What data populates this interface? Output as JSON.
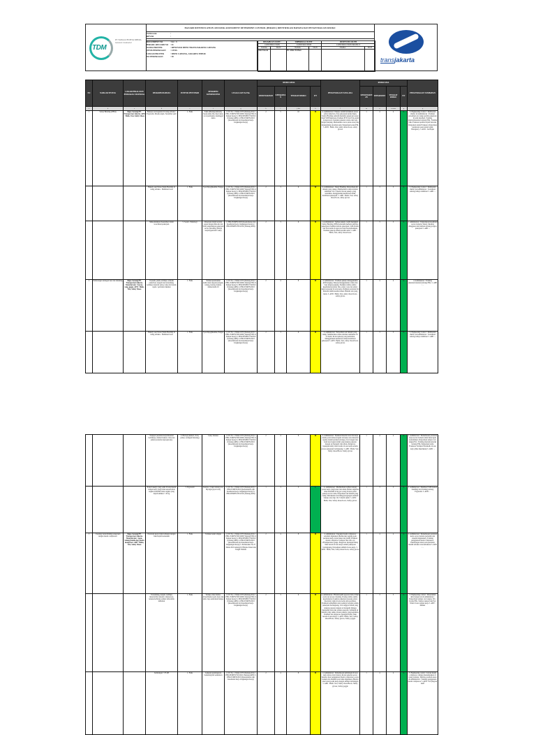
{
  "document": {
    "title": "HAZARD IDENTIFICATION AND RISK ASSESSMENT DETERMINE CONTROL (HIRADC) IDENTIFIKASI BAHAYA DAN PENGENDALIAN RISIKO",
    "company_name": "PT TANGGUH DETA MEDIA",
    "company_tagline": "General Contractor",
    "logo_left_text": "TDM",
    "logo_right_text_a": "trans",
    "logo_right_text_b": "jakarta",
    "info": [
      {
        "label": "TANGGAL",
        "value": ":"
      },
      {
        "label": "REVISI",
        "value": ":"
      },
      {
        "label": "DOCUMENT NO",
        "value": ": 0.2 - 3"
      },
      {
        "label": "HIRADC RECORD NO",
        "value": ": 01"
      },
      {
        "label": "NAMA PROYEK",
        "value": ": RENOVASI DEPO TRANSJAKARTA CAWANG"
      },
      {
        "label": "JENIS PEKERJAAN",
        "value": ": CIVIL"
      },
      {
        "label": "LOKASI PROYEK",
        "value": ": DEPO CAWANG, JAKARTA TIMUR"
      },
      {
        "label": "NO PEKERJAAN",
        "value": ": 30"
      }
    ],
    "approvals": [
      {
        "title": "DISIAPKAN OLEH :",
        "dept": "CONSTRUCTION",
        "name_label": "NAMA",
        "sign_label": "SIGN",
        "name": "Ade Irawan"
      },
      {
        "title": "DIPERIKSA OLEH :",
        "dept": "CONSTRUCTION",
        "name_label": "NAMA",
        "sign_label": "SIGN",
        "name": "M. Athar Farhan"
      },
      {
        "title": "DISETUJUI OLEH",
        "dept": "CONSTRUCTION PROJECT",
        "name_label": "NAMA :",
        "sign_label": "SIGN",
        "name": ""
      }
    ]
  },
  "table": {
    "headers": {
      "no": "NO",
      "aktivitas": "NAMA AKTIVITAS",
      "lokasi": "LOKASI/PERALATAN PERKAKAS/ MATERIAL",
      "bahaya": "DESKRIPSI BAHAYA",
      "potensi": "POTENSI PENYEBAB",
      "konsekuensi": "DESKRIPSI KONSEKUENSI",
      "legal": "LEGAL/LAIN No/Thn",
      "risiko_awal": "RISIKO AWAL",
      "kemungkinan": "KEMUNGKINAN",
      "keparahan": "KEPARAHAN",
      "tingkat": "TINGKAT RISIKO",
      "pt": "P/T",
      "pengendalian": "PENGENDALIAN YANG ADA",
      "risiko_sisa": "RISIKO SISA",
      "kemungkinan2": "KEMUNGKINAN",
      "keparahan2": "KEPARAHAN",
      "tingkat2": "TINGKAT RISIKO",
      "pt2": "P/T",
      "tambahan": "PENGENDALIAN TAMBAHAN"
    },
    "index_row": [
      "a",
      "b",
      "c",
      "d",
      "e",
      "f",
      "g",
      "h",
      "i",
      "j=hxi",
      "k",
      "l",
      "m",
      "n",
      "o=mxn",
      "p",
      "q"
    ],
    "colors": {
      "M": "#ffff00",
      "L": "#00b050",
      "header": "#3c3c3c"
    },
    "rows": [
      {
        "no": "1",
        "aktivitas": "Safety Briefing (TBM)",
        "lokasi": "Depo Cawang PT. Transportasi Jakarta. APD : Helm, Vest, Safety Shoes",
        "bahaya": "Bekerja saat kegiatan di ruang terbuka : Ergonomi, Masuk angin, Tersambar petir",
        "potensi": "1. Fisik",
        "konsekuensi": "Sakit (Meriang/demam), Sesak pilek dll), luka bakar, cacat permanen, meninggal dunia",
        "legal": "1. UU No. 1 Tahun 1970 (Tentang K3) 2. PER.15/MEN/VIII/2008 (Tentang P3K di Tempat Kerja) 3. PER.08/MEN/VII/2010 (Tentang APD) 4. PER.05/MEN/2018 (Keselamatan dan Kesehatan Kerja Lingkungan Kerja)",
        "kemungkinan": "2",
        "keparahan": "5",
        "tingkat": "10",
        "pt": "M",
        "pengendalian": "4. Administrasi : Pekerja sudah melakukan proses safety induction, Stop pekerjaan ketika hujan, Safety Briefing sebelum memulai pekerjaan sesuai hasil SOP Pekerjaan, Pastikan PTW dan JSA sudah di Approved, Gunakan pakaian celana dan baju lengan panjang, Memastikan cuaca panas atau yang mengandung ancaman petir, Pengadaan kotak P3K. 5. APD : Helm, Vest, safety shoes/boots, safety gloves",
        "kemungkinan2": "1",
        "keparahan2": "4",
        "tingkat2": "4",
        "pt2": "L",
        "tambahan": "3. Engineering Control : Pembuatan shelter. & Administrasi : Pastikan persediaan air cukup apabila pekerjaan di terik matahari, Training internal/eksternal tentang P3K, Training fisik, Evakuasi apabila terjadi bencana, Pengadaan tandu Evakuasi, Penyediaan kendaraan operasional untuk Emergency. 5. APD : Jas Hujan"
      },
      {
        "no": "",
        "aktivitas": "",
        "lokasi": "",
        "bahaya": "Bekerja saat Panas (Suhu Ekstrim) di ruang terbuka - Dehidrasi berat",
        "potensi": "1. Fisik",
        "konsekuensi": "Syok hipoglikemik, Fatigue",
        "legal": "1. UU No. 1 Tahun 1970 (Tentang K3) 2. PER.15/MEN/VIII/2008 (Tentang P3K di Tempat Kerja) 3. PER.08/MEN/VII/2010 (Tentang APD) 4. PER.05/MEN/2018 (Keselamatan dan Kesehatan Kerja Lingkungan Kerja)",
        "kemungkinan": "2",
        "keparahan": "3",
        "tingkat": "6",
        "pt": "M",
        "pengendalian": "4. Administrasi : Safety Briefing, Penyediaan Air minum yang cukup, Memberikan waktu istirahat tambahan 10-15 menit, Rotasi pekerja yang kelelahan, menggunakan kendaraan untuk mobilisasi pekerjaan. 5. APD : Helm, Vest, safety shoes/boots, safety gloves",
        "kemungkinan2": "1",
        "keparahan2": "3",
        "tingkat2": "3",
        "pt2": "L",
        "tambahan": "3. Engineering Control : Pembuatan shelter. & Administrasi : Sosialisasi tentang bahaya dehidrasi 5. APD : -"
      },
      {
        "no": "",
        "aktivitas": "",
        "lokasi": "",
        "bahaya": "Miskomunikasi Kesalahan dalam koordinasi pekerjaan",
        "potensi": "5. Sosial - Psikologi",
        "konsekuensi": "Pekerjaan tidak berjalan sesuai dengan Metode dan SOP, pengulangan pekerjaan secara berulang. (Beban kerja/hypertensi/ sakit)",
        "legal": "1. PER.05/MEN/2018 (Keselamatan dan Kesehatan Kerja Lingkungan Kerja) 2. PER.08/MEN/VII/2010 (Tentang APD)",
        "kemungkinan": "2",
        "keparahan": "3",
        "tingkat": "6",
        "pt": "M",
        "pengendalian": "4. Administrasi : Semua pekerja wajib mengikuti Safety Briefing (TBM) sebelum memulai aktifitas pekerjaan, Pastikan metode pekerjaan, SOP, Permit dan JSA sudah di approved dan disosialisasikan, Pastikan pekerja dalam kondisi sehat 5. APD : Helm, Vest, safety shoes/boots",
        "kemungkinan2": "1",
        "keparahan2": "3",
        "tingkat2": "3",
        "pt2": "L",
        "tambahan": "4. Administrasi : Pemeriksaan kesehatan secara berkala (Tensi), Meeting mingguan dan bulanan tentang progres pekerjaan 5. APD : -"
      },
      {
        "no": "2",
        "aktivitas": "Pemasangan tulangan besi dan bekisting",
        "lokasi": "Depo Cawang PT. Transportasi Jakarta. Material alat : Kawat, tang, gegep. APD : Helm, Vest, Safety Shoes",
        "bahaya": "Terjatuh, jatuh, tertimpa, tertusuk paku/besi, terjepit dan tersandung, tertimpa material (alat), Luka dari benda tajam / peralatan tikaman",
        "potensi": "1. Fisik",
        "konsekuensi": "Terluka/pendarahan kulit/cedera kepala (tangan, tulang, benda), memar, infeksi kulit dll",
        "legal": "1. UU No. 1 Tahun 1970 (Tentang K3) 2. PER.15/MEN/VIII/2008 (Tentang P3K di Tempat Kerja) 3. PER.08/MEN/VII/2010 (Tentang APD) 4. PER.05/MEN/2018 (Keselamatan dan Kesehatan Kerja Lingkungan Kerja)",
        "kemungkinan": "2",
        "keparahan": "4",
        "tingkat": "8",
        "pt": "M",
        "pengendalian": "4. Administrasi : Pastikan pekerja menggunakan APD lengkap, Pekerja menggunakan celana dan baju lengan panjang, Pastikan rambu-rambu keselamatan (safety line, safety cone dan safety sign) terpasang di area kerja, Pastikan peralatan dan material dalam kondisi aman. Hindari alat yang rusak. 5. APD : Helm, Vest, safety shoes/boots, safety gloves",
        "kemungkinan2": "1",
        "keparahan2": "4",
        "tingkat2": "4",
        "pt2": "L",
        "tambahan": "4. Administrasi : Training (internal/external) tentang P3K, 5. APD : -"
      },
      {
        "no": "",
        "aktivitas": "",
        "lokasi": "",
        "bahaya": "Bekerja saat Panas (Suhu Ekstrim) di ruang terbuka - Dehidrasi berat",
        "potensi": "1. Fisik",
        "konsekuensi": "Syok hipoglikemik, Fatigue",
        "legal": "1. UU No. 1 Tahun 1970 (Tentang K3) 2. PER.15/MEN/VIII/2008 (Tentang P3K di Tempat Kerja) 3. PER.08/MEN/VII/2010 (Tentang APD) 4. PER.05/MEN/2018 (Keselamatan dan Kesehatan Kerja Lingkungan Kerja)",
        "kemungkinan": "2",
        "keparahan": "3",
        "tingkat": "6",
        "pt": "M",
        "pengendalian": "4. Administrasi : Penyediaan Air minum yang cukup, Memberikan waktu istirahat tambahan 10-15 menit, Rotasi pekerja yang kelelahan, Menggunakan kendaraan untuk mobilisasi pekerjaan 5. APD : Helm, Vest, safety shoes/boots, safety gloves",
        "kemungkinan2": "1",
        "keparahan2": "3",
        "tingkat2": "3",
        "pt2": "L",
        "tambahan": "3. Engineering Control : Pembuatan shelter. & Administrasi : Sosialisasi tentang bahaya dehidrasi 5. APD : -"
      }
    ],
    "rows_page2": [
      {
        "no": "",
        "aktivitas": "",
        "lokasi": "",
        "bahaya": "Terpapar peralatan kerja/material berbahaya, infeksi bakteri, virus dan jamur (terutama leptospirosis)",
        "potensi": "2. Biologi (bakteri, virus, jamur, serangan binatang)",
        "konsekuensi": "Luka, Tetanus",
        "legal": "1. UU No. 1 Tahun 1970 (Tentang K3) 2. PER.15/MEN/VIII/2008 (Tentang P3K di Tempat Kerja) 3. PER.08/MEN/VII/2010 (Tentang APD) 4. PER.05/MEN/2018 (Keselamatan dan Kesehatan Kerja Lingkungan Kerja)",
        "kemungkinan": "2",
        "keparahan": "4",
        "tingkat": "8",
        "pt": "M",
        "pengendalian": "4. Administrasi : Pastikan material atau alat kerja dalam posisi aman (bagian alat kerja atau material tajam) dalam keadaan tertutup), Cuci tangan dan kaki atau bagian tubuh yang terkena paparan dengan air mengalir dan sabun, Pengawas lapangan/safety man berada di area kerja selama proses pekerjaan berlangsung. 5. APD : Helm, Vest, Safety shoes/Boots, Safety gloves",
        "kemungkinan2": "1",
        "keparahan2": "4",
        "tingkat2": "4",
        "pt2": "L",
        "tambahan": "4. Administrasi : Pemeriksaan peralatan kerja secara berkala untuk mencegah kontaminasi, Penyediaan tempat cuci tangan/WC, Training internal/external tentang P3K, Pengadaan tandu Evakuasi, Terdapat Paramedis di area kerja (Jika diperlukan) 5. APD : -"
      },
      {
        "no": "",
        "aktivitas": "",
        "lokasi": "",
        "bahaya": "Posisi bekerja yang salah, Postur/desain tempat kerja yang tidak sesuai/beban angkat melebihi beban angkat yang diperbolehkan > 20 kg",
        "potensi": "3. Ergonomi",
        "konsekuensi": "Keseleo, Cidera tulang otot, Myalgia (nyeri otot)",
        "legal": "1. UU No. 1 Tahun 1970 (Tentang K3) 2. PER.05/MEN/2018 (Keselamatan dan Kesehatan Kerja Lingkungan Kerja) 3. PER.08/MEN/VII/2010 (Tentang APD)",
        "kemungkinan": "1",
        "keparahan": "3",
        "tingkat": "3",
        "pt": "L",
        "pengendalian": "4. Administrasi : Memberikan arahan tentang postur kerja yang benar dan aman, Beban angkatan tidak melebihi 20 kg per orang, Rotasi posisi pekerja secara rutin, Penyediaan Air minum yang cukup, Melakukan stretching/peregangan sebelum bekerja atau tiap 10-15 menit sekali. 5. APD : Helm, Vest, Safety shoes/boots, Safety gloves",
        "kemungkinan2": "1",
        "keparahan2": "3",
        "tingkat2": "3",
        "pt2": "L",
        "tambahan": "4. Administrasi : Membuat SOP manual handling dan Training tentang Ergonomi. 5. APD : -"
      },
      {
        "no": "3",
        "aktivitas": "Cleaning lantai/dinding pengeruan dengan mesin compressor",
        "lokasi": "Depo Cawang PT. Transportasi Jakarta. Material alat : Sapu, Selang (kunik dop) mesin kompresor. APD : Helm, Vest, Safety Shoes",
        "bahaya": "Peralatan kerja tidak berfungsi dengan baik/terjadi kerusakan",
        "potensi": "1. Fisik",
        "konsekuensi": "Terluka/cedera ringan",
        "legal": "1. UU No. 1 Tahun 1970 (Tentang K3) 2. PER.15/MEN/VIII/2008 (Tentang P3K di Tempat Kerja) 3. PER.08/MEN/VII/2010 (Tentang APD) 4. PER.05/MEN/2018 (Keselamatan dan Kesehatan Kerja Lingkungan Kerja) 5. Permenaker No.37 Tahun 2016 tentang K3 Bejana Tekan dan Tangki Timbun",
        "kemungkinan": "2",
        "keparahan": "4",
        "tingkat": "8",
        "pt": "M",
        "pengendalian": "4. Administrasi : Inspeksi mesin compressor sebelum digunakan (Pemberian tagging pada peralatan kerja layak pakai dan tidak), Pastikan mesin compressor terdapat fitur auto cut off/temperature gauge, Pengawas lapangan/Safety Man berada di area kerja selama pekerjaan berlangsung, Penyediaan APAR di area kerja. 5. APD : Helm, Vest, safety shoes/boots, safety gloves",
        "kemungkinan2": "1",
        "keparahan2": "4",
        "tingkat2": "4",
        "pt2": "L",
        "tambahan": "4. Administrasi : Pemeriksaan peralatan kerja secara berkala (sebelum dan sesudah digunakan), Training penggunaan mesin compressor, Pemasangan label pada peralatan mudah terbakar atau kebakaran 5. APD : -"
      },
      {
        "no": "",
        "aktivitas": "",
        "lokasi": "",
        "bahaya": "Tersandung, terjepit, tertimpa material/alat (mesin compressor), terkena/terhirup partikel debu/debu dehidrasi",
        "potensi": "1. Fisik",
        "konsekuensi": "Terluka, luka memar, iritasi/infeksi pada mata dan kulit, Iapo kelelahan/fatigue",
        "legal": "1. UU No. 1 Tahun 1970 (Tentang K3) 2. PER.15/MEN/VIII/2008 (Tentang P3K di Tempat Kerja) 3. PER.08/MEN/VII/2010 (Tentang APD) 4. PER.05/MEN/2018 (Keselamatan dan Kesehatan Kerja Lingkungan Kerja)",
        "kemungkinan": "2",
        "keparahan": "3",
        "tingkat": "6",
        "pt": "M",
        "pengendalian": "4. Administrasi : Hindari/jauhi paparan debu cilikan pada saat proses cleaning, Pasang rambu-rambu keselamatan di sekitar pekerjaan (pasang safety line/safety sign) di area kerja atau peralatan, Pastikan komunikasi antar pekerja berjalan selama pekerjaan berlangsung, Cuci anggota tubuh yang terkena paparan dengan air mengalir (hingga menjauhi) mata jika terkena paparan, Sediakan air minum yang cukup, Rotasi pekerja yang kelelahan, Pastikan ada pengawas lapangan/Safety Man berada di area kerja. 5. APD : Helm, Vest, Safety shoes/Boots, Safety gloves, Safety goggle",
        "kemungkinan2": "1",
        "keparahan2": "3",
        "tingkat2": "3",
        "pt2": "L",
        "tambahan": "3. Engineering control : Penyiraman debu dengan air & Administrasi : Penyediaan tempat cuci tangan, WC, Kotak P3K, Tandu evakuasi dan Eye Wash di area tempat kerja 5. APD : Masker"
      },
      {
        "no": "",
        "aktivitas": "",
        "lokasi": "",
        "bahaya": "Kebisingan > 85 dB",
        "potensi": "1. Fisik",
        "konsekuensi": "Ganguan pendengaran berkurang/tuli sementara",
        "legal": "1. UU No. 1 Tahun 1970 (Tentang K3) 2. PER.08/MEN/VII/2010 (Tentang APD) 3. PER.05/MEN/2018 (Keselamatan dan Kesehatan Kerja Lingkungan Kerja)",
        "kemungkinan": "2",
        "keparahan": "4",
        "tingkat": "8",
        "pt": "M",
        "pengendalian": "4. Administrasi : Pemeriksaan kebisingan di area kerja (noise level meter), Rotasi pekerja secara berkala, Atur penggunaan mesin compressor secara berkala dan matikan saat tidak digunakan, Hindari atau batasi posisi kerja dengan sumber kebisingan 5. APD : Helm, Vest, Safety shoes/Boots, Safety gloves, Safety goggle",
        "kemungkinan2": "1",
        "keparahan2": "4",
        "tingkat2": "4",
        "pt2": "L",
        "tambahan": "3. Engineering control : Isolasi mesin compressor dengan menempatkan di ruang tertutup, Tembok peredam suara & Administrasi : Training penggunaan mesin compressor 5. APD : Ear plug/ear muff"
      }
    ]
  }
}
